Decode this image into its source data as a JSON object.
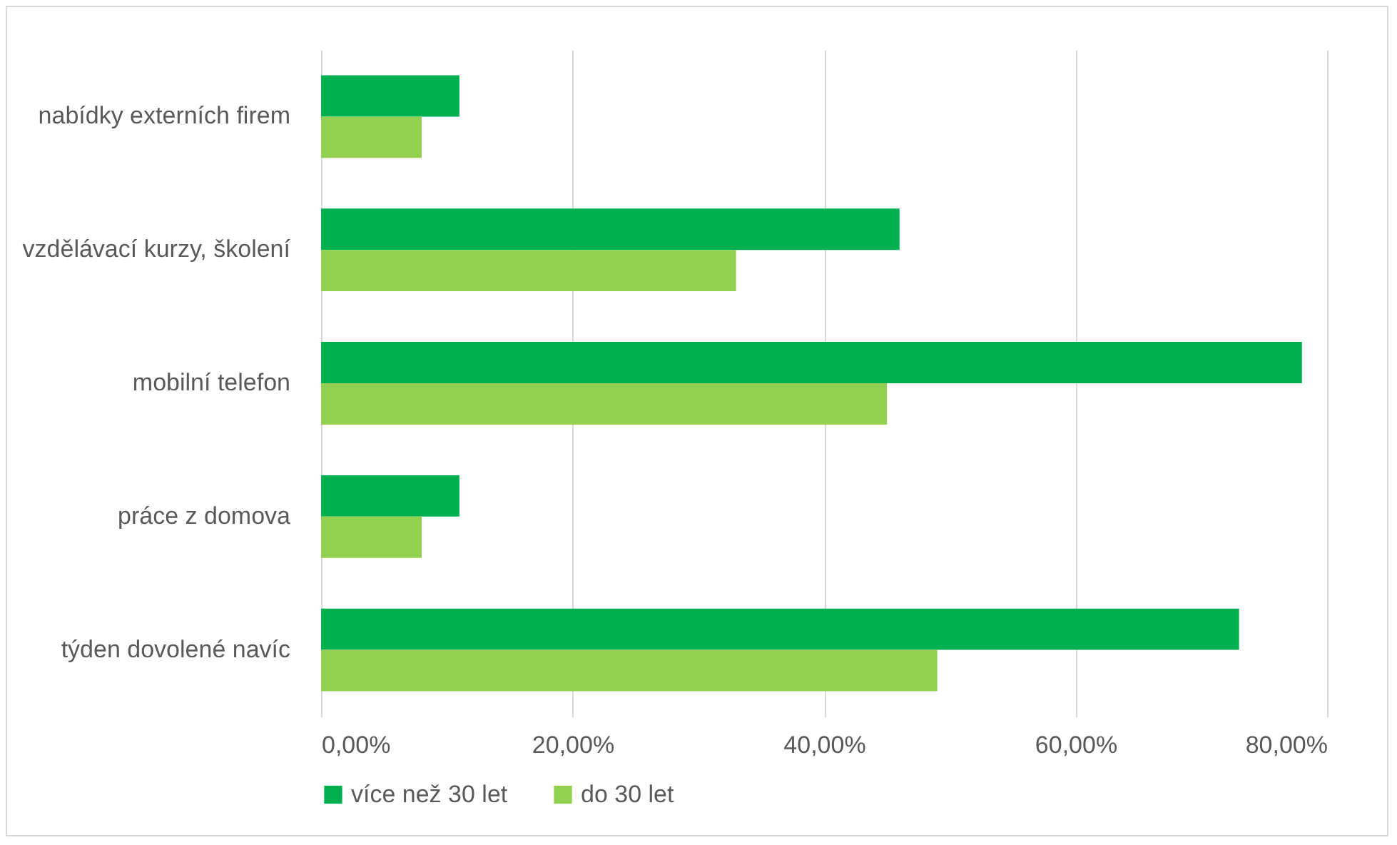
{
  "chart_data": {
    "type": "bar",
    "orientation": "horizontal",
    "categories": [
      "nabídky externích firem",
      "vzdělávací kurzy, školení",
      "mobilní telefon",
      "práce z domova",
      "týden dovolené navíc"
    ],
    "series": [
      {
        "name": "více než 30 let",
        "color": "#00b050",
        "values": [
          11,
          46,
          78,
          11,
          73
        ]
      },
      {
        "name": "do 30 let",
        "color": "#92d050",
        "values": [
          8,
          33,
          45,
          8,
          49
        ]
      }
    ],
    "xlim": [
      0,
      80
    ],
    "xticks": [
      {
        "value": 0,
        "label": "0,00%"
      },
      {
        "value": 20,
        "label": "20,00%"
      },
      {
        "value": 40,
        "label": "40,00%"
      },
      {
        "value": 60,
        "label": "60,00%"
      },
      {
        "value": 80,
        "label": "80,00%"
      }
    ],
    "grid": "x",
    "legend": "bottom"
  }
}
